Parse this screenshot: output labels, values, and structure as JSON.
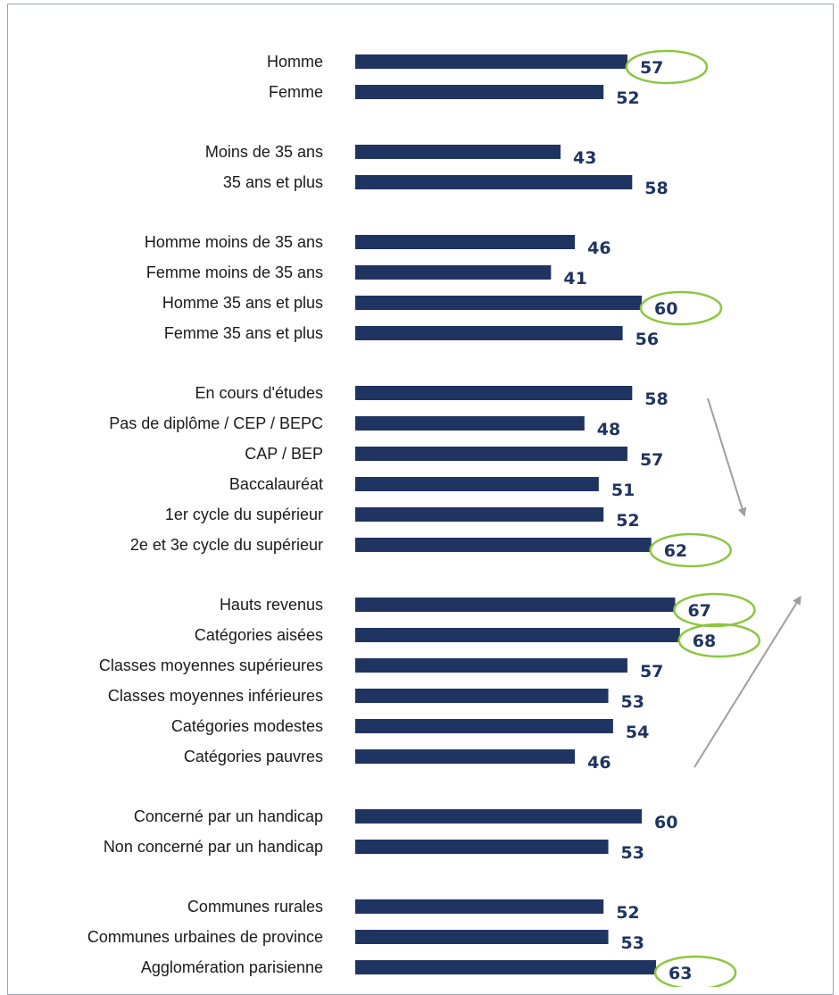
{
  "chart_data": {
    "type": "bar",
    "orientation": "horizontal",
    "title": "",
    "xlabel": "",
    "ylabel": "",
    "xlim": [
      0,
      70
    ],
    "grid": false,
    "legend": "none",
    "bar_color": "#1f3461",
    "label_color": "#1f3461",
    "highlight_color": "#8cc63f",
    "arrow_color": "#9e9e9e",
    "groups": [
      {
        "items": [
          {
            "label": "Homme",
            "value": 57,
            "highlight": true
          },
          {
            "label": "Femme",
            "value": 52,
            "highlight": false
          }
        ]
      },
      {
        "items": [
          {
            "label": "Moins de 35 ans",
            "value": 43,
            "highlight": false
          },
          {
            "label": "35 ans et plus",
            "value": 58,
            "highlight": false
          }
        ]
      },
      {
        "items": [
          {
            "label": "Homme moins de 35 ans",
            "value": 46,
            "highlight": false
          },
          {
            "label": "Femme moins de 35 ans",
            "value": 41,
            "highlight": false
          },
          {
            "label": "Homme 35 ans et plus",
            "value": 60,
            "highlight": true
          },
          {
            "label": "Femme 35 ans et plus",
            "value": 56,
            "highlight": false
          }
        ]
      },
      {
        "items": [
          {
            "label": "En cours d'études",
            "value": 58,
            "highlight": false
          },
          {
            "label": "Pas de diplôme / CEP / BEPC",
            "value": 48,
            "highlight": false
          },
          {
            "label": "CAP / BEP",
            "value": 57,
            "highlight": false
          },
          {
            "label": "Baccalauréat",
            "value": 51,
            "highlight": false
          },
          {
            "label": "1er cycle du supérieur",
            "value": 52,
            "highlight": false
          },
          {
            "label": "2e et 3e cycle du supérieur",
            "value": 62,
            "highlight": true
          }
        ]
      },
      {
        "items": [
          {
            "label": "Hauts revenus",
            "value": 67,
            "highlight": true
          },
          {
            "label": "Catégories aisées",
            "value": 68,
            "highlight": true
          },
          {
            "label": "Classes moyennes supérieures",
            "value": 57,
            "highlight": false
          },
          {
            "label": "Classes moyennes inférieures",
            "value": 53,
            "highlight": false
          },
          {
            "label": "Catégories modestes",
            "value": 54,
            "highlight": false
          },
          {
            "label": "Catégories pauvres",
            "value": 46,
            "highlight": false
          }
        ]
      },
      {
        "items": [
          {
            "label": "Concerné par un handicap",
            "value": 60,
            "highlight": false
          },
          {
            "label": "Non concerné par un handicap",
            "value": 53,
            "highlight": false
          }
        ]
      },
      {
        "items": [
          {
            "label": "Communes rurales",
            "value": 52,
            "highlight": false
          },
          {
            "label": "Communes urbaines de province",
            "value": 53,
            "highlight": false
          },
          {
            "label": "Agglomération parisienne",
            "value": 63,
            "highlight": true
          }
        ]
      }
    ],
    "annotations": [
      {
        "type": "arrow",
        "direction": "down",
        "spans_group": 3
      },
      {
        "type": "arrow",
        "direction": "up",
        "spans_group": 4
      }
    ]
  }
}
